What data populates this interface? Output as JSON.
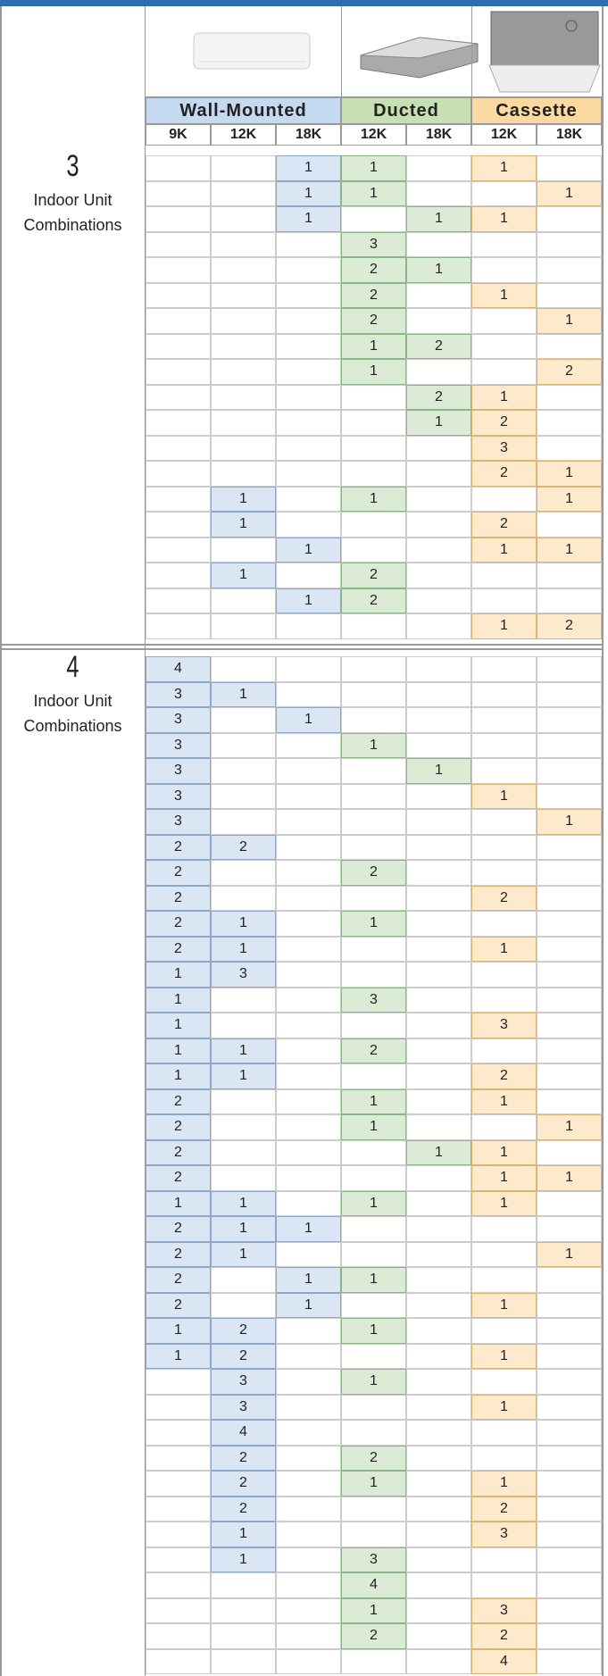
{
  "header": {
    "groups": [
      {
        "name": "Wall-Mounted",
        "capacities": [
          "9K",
          "12K",
          "18K"
        ]
      },
      {
        "name": "Ducted",
        "capacities": [
          "12K",
          "18K"
        ]
      },
      {
        "name": "Cassette",
        "capacities": [
          "12K",
          "18K"
        ]
      }
    ]
  },
  "sections": [
    {
      "count": "3",
      "label": "Indoor Unit Combinations",
      "rows": [
        [
          null,
          null,
          1,
          1,
          null,
          1,
          null
        ],
        [
          null,
          null,
          1,
          1,
          null,
          null,
          1
        ],
        [
          null,
          null,
          1,
          null,
          1,
          1,
          null
        ],
        [
          null,
          null,
          null,
          3,
          null,
          null,
          null
        ],
        [
          null,
          null,
          null,
          2,
          1,
          null,
          null
        ],
        [
          null,
          null,
          null,
          2,
          null,
          1,
          null
        ],
        [
          null,
          null,
          null,
          2,
          null,
          null,
          1
        ],
        [
          null,
          null,
          null,
          1,
          2,
          null,
          null
        ],
        [
          null,
          null,
          null,
          1,
          null,
          null,
          2
        ],
        [
          null,
          null,
          null,
          null,
          2,
          1,
          null
        ],
        [
          null,
          null,
          null,
          null,
          1,
          2,
          null
        ],
        [
          null,
          null,
          null,
          null,
          null,
          3,
          null
        ],
        [
          null,
          null,
          null,
          null,
          null,
          2,
          1
        ],
        [
          null,
          1,
          null,
          1,
          null,
          null,
          1
        ],
        [
          null,
          1,
          null,
          null,
          null,
          2,
          null
        ],
        [
          null,
          null,
          1,
          null,
          null,
          1,
          1
        ],
        [
          null,
          1,
          null,
          2,
          null,
          null,
          null
        ],
        [
          null,
          null,
          1,
          2,
          null,
          null,
          null
        ],
        [
          null,
          null,
          null,
          null,
          null,
          1,
          2
        ]
      ]
    },
    {
      "count": "4",
      "label": "Indoor Unit Combinations",
      "rows": [
        [
          4,
          null,
          null,
          null,
          null,
          null,
          null
        ],
        [
          3,
          1,
          null,
          null,
          null,
          null,
          null
        ],
        [
          3,
          null,
          1,
          null,
          null,
          null,
          null
        ],
        [
          3,
          null,
          null,
          1,
          null,
          null,
          null
        ],
        [
          3,
          null,
          null,
          null,
          1,
          null,
          null
        ],
        [
          3,
          null,
          null,
          null,
          null,
          1,
          null
        ],
        [
          3,
          null,
          null,
          null,
          null,
          null,
          1
        ],
        [
          2,
          2,
          null,
          null,
          null,
          null,
          null
        ],
        [
          2,
          null,
          null,
          2,
          null,
          null,
          null
        ],
        [
          2,
          null,
          null,
          null,
          null,
          2,
          null
        ],
        [
          2,
          1,
          null,
          1,
          null,
          null,
          null
        ],
        [
          2,
          1,
          null,
          null,
          null,
          1,
          null
        ],
        [
          1,
          3,
          null,
          null,
          null,
          null,
          null
        ],
        [
          1,
          null,
          null,
          3,
          null,
          null,
          null
        ],
        [
          1,
          null,
          null,
          null,
          null,
          3,
          null
        ],
        [
          1,
          1,
          null,
          2,
          null,
          null,
          null
        ],
        [
          1,
          1,
          null,
          null,
          null,
          2,
          null
        ],
        [
          2,
          null,
          null,
          1,
          null,
          1,
          null
        ],
        [
          2,
          null,
          null,
          1,
          null,
          null,
          1
        ],
        [
          2,
          null,
          null,
          null,
          1,
          1,
          null
        ],
        [
          2,
          null,
          null,
          null,
          null,
          1,
          1
        ],
        [
          1,
          1,
          null,
          1,
          null,
          1,
          null
        ],
        [
          2,
          1,
          1,
          null,
          null,
          null,
          null
        ],
        [
          2,
          1,
          null,
          null,
          null,
          null,
          1
        ],
        [
          2,
          null,
          1,
          1,
          null,
          null,
          null
        ],
        [
          2,
          null,
          1,
          null,
          null,
          1,
          null
        ],
        [
          1,
          2,
          null,
          1,
          null,
          null,
          null
        ],
        [
          1,
          2,
          null,
          null,
          null,
          1,
          null
        ],
        [
          null,
          3,
          null,
          1,
          null,
          null,
          null
        ],
        [
          null,
          3,
          null,
          null,
          null,
          1,
          null
        ],
        [
          null,
          4,
          null,
          null,
          null,
          null,
          null
        ],
        [
          null,
          2,
          null,
          2,
          null,
          null,
          null
        ],
        [
          null,
          2,
          null,
          1,
          null,
          1,
          null
        ],
        [
          null,
          2,
          null,
          null,
          null,
          2,
          null
        ],
        [
          null,
          1,
          null,
          null,
          null,
          3,
          null
        ],
        [
          null,
          1,
          null,
          3,
          null,
          null,
          null
        ],
        [
          null,
          null,
          null,
          4,
          null,
          null,
          null
        ],
        [
          null,
          null,
          null,
          1,
          null,
          3,
          null
        ],
        [
          null,
          null,
          null,
          2,
          null,
          2,
          null
        ],
        [
          null,
          null,
          null,
          null,
          null,
          4,
          null
        ]
      ]
    }
  ]
}
